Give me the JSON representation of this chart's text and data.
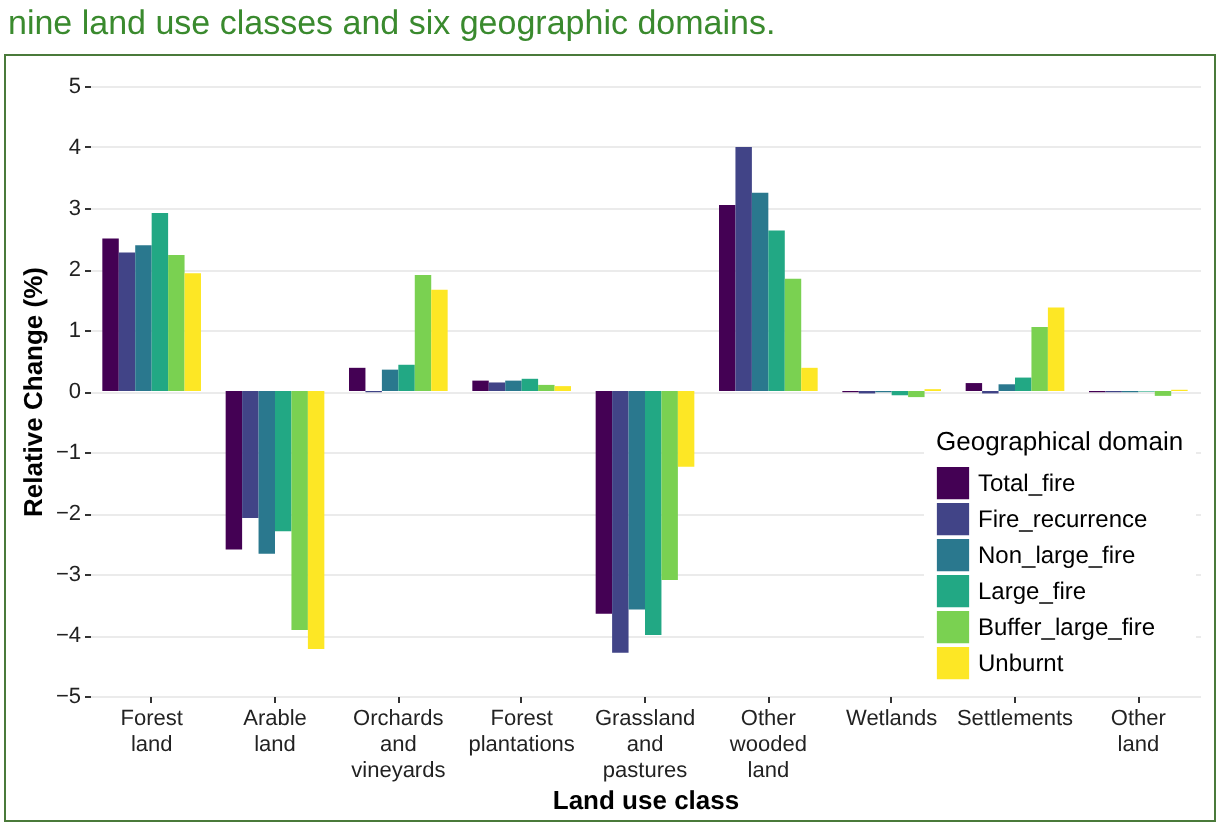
{
  "chart_data": {
    "type": "bar",
    "title": "nine land use classes and six geographic domains.",
    "xlabel": "Land use class",
    "ylabel": "Relative Change (%)",
    "legend_title": "Geographical domain",
    "categories": [
      "Forest land",
      "Arable land",
      "Orchards and vineyards",
      "Forest plantations",
      "Grassland and pastures",
      "Other wooded land",
      "Wetlands",
      "Settlements",
      "Other land"
    ],
    "series": [
      {
        "name": "Total_fire",
        "color": "#440154",
        "values": [
          2.5,
          -2.6,
          0.38,
          0.17,
          -3.65,
          3.05,
          -0.02,
          0.13,
          -0.02
        ]
      },
      {
        "name": "Fire_recurrence",
        "color": "#414487",
        "values": [
          2.27,
          -2.08,
          -0.02,
          0.14,
          -4.29,
          4.0,
          -0.04,
          -0.04,
          -0.02
        ]
      },
      {
        "name": "Non_large_fire",
        "color": "#2a788e",
        "values": [
          2.39,
          -2.67,
          0.35,
          0.17,
          -3.58,
          3.25,
          -0.02,
          0.11,
          -0.02
        ]
      },
      {
        "name": "Large_fire",
        "color": "#22a884",
        "values": [
          2.92,
          -2.3,
          0.43,
          0.2,
          -4.0,
          2.63,
          -0.07,
          0.22,
          -0.01
        ]
      },
      {
        "name": "Buffer_large_fire",
        "color": "#7ad151",
        "values": [
          2.23,
          -3.92,
          1.9,
          0.1,
          -3.1,
          1.84,
          -0.1,
          1.05,
          -0.08
        ]
      },
      {
        "name": "Unburnt",
        "color": "#fde725",
        "values": [
          1.93,
          -4.23,
          1.66,
          0.08,
          -1.24,
          0.38,
          0.03,
          1.37,
          0.02
        ]
      }
    ],
    "ylim": [
      -5,
      5
    ],
    "yticks": [
      -5,
      -4,
      -3,
      -2,
      -1,
      0,
      1,
      2,
      3,
      4,
      5
    ],
    "grid": "y",
    "legend": "bottom right"
  }
}
